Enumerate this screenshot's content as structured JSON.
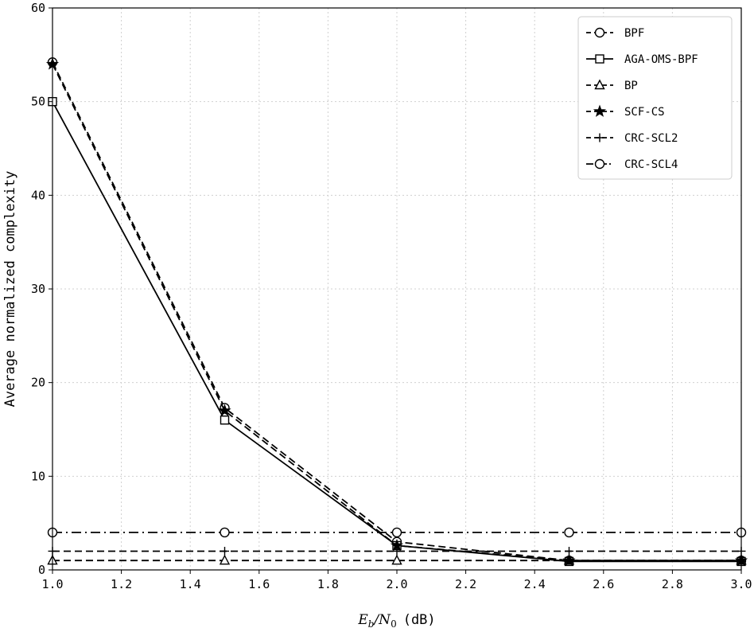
{
  "chart_data": {
    "type": "line",
    "xlabel_main": "E",
    "xlabel_sub_b": "b",
    "xlabel_slash": "/N",
    "xlabel_sub_0": "0",
    "xlabel_unit": "(dB)",
    "ylabel": "Average normalized complexity",
    "xlim": [
      1.0,
      3.0
    ],
    "ylim": [
      0,
      60
    ],
    "xticks": [
      "1.0",
      "1.2",
      "1.4",
      "1.6",
      "1.8",
      "2.0",
      "2.2",
      "2.4",
      "2.6",
      "2.8",
      "3.0"
    ],
    "yticks": [
      "0",
      "10",
      "20",
      "30",
      "40",
      "50",
      "60"
    ],
    "grid": true,
    "legend_position": "top-right",
    "series": [
      {
        "name": "BPF",
        "x": [
          1.0,
          1.5,
          2.0,
          2.5,
          3.0
        ],
        "values": [
          54.2,
          17.3,
          3.0,
          1.0,
          1.0
        ],
        "linestyle": "dashed",
        "marker": "circle"
      },
      {
        "name": "AGA-OMS-BPF",
        "x": [
          1.0,
          1.5,
          2.0,
          2.5,
          3.0
        ],
        "values": [
          50.0,
          16.0,
          2.6,
          0.9,
          0.9
        ],
        "linestyle": "solid",
        "marker": "square"
      },
      {
        "name": "BP",
        "x": [
          1.0,
          1.5,
          2.0,
          2.5,
          3.0
        ],
        "values": [
          1.0,
          1.0,
          1.0,
          1.0,
          1.0
        ],
        "linestyle": "dashed",
        "marker": "triangle"
      },
      {
        "name": "SCF-CS",
        "x": [
          1.0,
          1.5,
          2.0,
          2.5,
          3.0
        ],
        "values": [
          54.0,
          17.0,
          2.6,
          1.0,
          1.0
        ],
        "linestyle": "dashed",
        "marker": "star"
      },
      {
        "name": "CRC-SCL2",
        "x": [
          1.0,
          1.5,
          2.0,
          2.5,
          3.0
        ],
        "values": [
          2.0,
          2.0,
          2.0,
          2.0,
          2.0
        ],
        "linestyle": "dashed",
        "marker": "plus"
      },
      {
        "name": "CRC-SCL4",
        "x": [
          1.0,
          1.5,
          2.0,
          2.5,
          3.0
        ],
        "values": [
          4.0,
          4.0,
          4.0,
          4.0,
          4.0
        ],
        "linestyle": "dashdot",
        "marker": "circle"
      }
    ]
  }
}
